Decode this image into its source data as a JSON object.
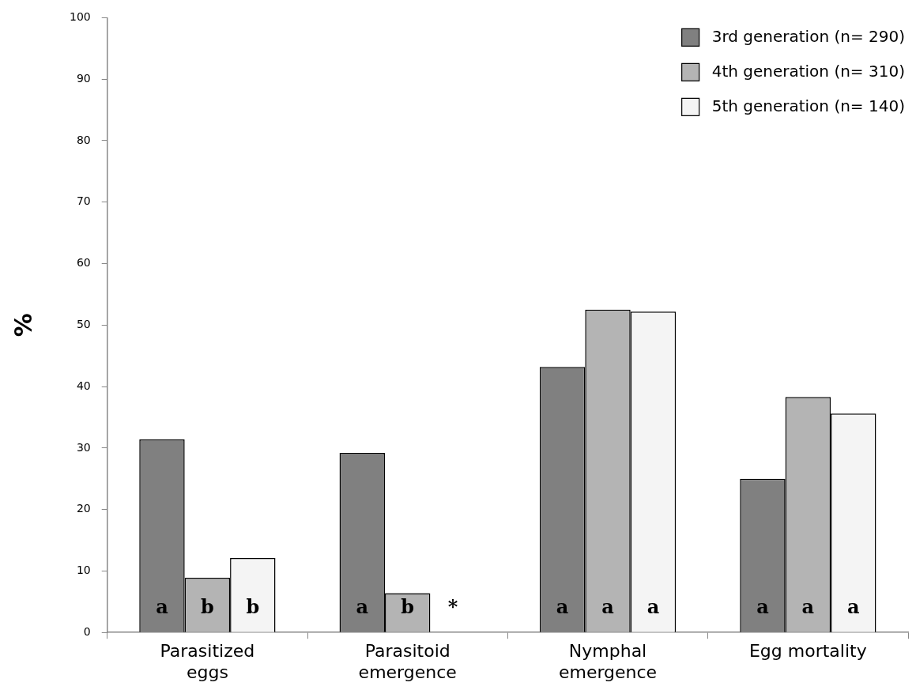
{
  "chart_data": {
    "type": "bar",
    "ylabel": "%",
    "categories": [
      "Parasitized eggs",
      "Parasitoid emergence",
      "Nymphal emergence",
      "Egg mortality"
    ],
    "series": [
      {
        "name": "3rd generation (n= 290)",
        "color": "#808080",
        "values": [
          31.4,
          29.2,
          43.2,
          25.0
        ],
        "value_labels": [
          "a",
          "a",
          "a",
          "a"
        ]
      },
      {
        "name": "4th generation (n= 310)",
        "color": "#b4b4b4",
        "values": [
          8.9,
          6.4,
          52.5,
          38.3
        ],
        "value_labels": [
          "b",
          "b",
          "a",
          "a"
        ]
      },
      {
        "name": "5th generation (n= 140)",
        "color": "#f4f4f4",
        "values": [
          12.1,
          null,
          52.2,
          35.6
        ],
        "value_labels": [
          "b",
          "*",
          "a",
          "a"
        ]
      }
    ],
    "ylim": [
      0,
      100
    ],
    "yticks": [
      0,
      10,
      20,
      30,
      40,
      50,
      60,
      70,
      80,
      90,
      100
    ],
    "grid": false,
    "legend": "top right"
  }
}
